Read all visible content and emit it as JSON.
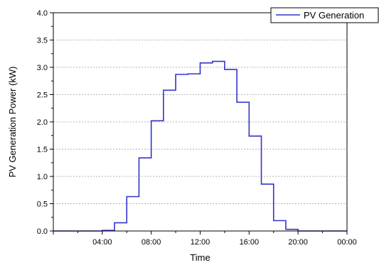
{
  "chart_data": {
    "type": "line",
    "step": true,
    "xlabel": "Time",
    "ylabel": "PV Generation Power (kW)",
    "xlim": [
      0,
      24
    ],
    "ylim": [
      0,
      4.0
    ],
    "x_ticks": [
      {
        "value": 4,
        "label": "04:00"
      },
      {
        "value": 8,
        "label": "08:00"
      },
      {
        "value": 12,
        "label": "12:00"
      },
      {
        "value": 16,
        "label": "16:00"
      },
      {
        "value": 20,
        "label": "20:00"
      },
      {
        "value": 24,
        "label": "00:00"
      }
    ],
    "y_ticks": [
      "0.0",
      "0.5",
      "1.0",
      "1.5",
      "2.0",
      "2.5",
      "3.0",
      "3.5",
      "4.0"
    ],
    "grid": "horizontal-dotted",
    "legend": "top-right",
    "series": [
      {
        "name": "PV Generation",
        "color": "#3333cc",
        "x": [
          0,
          1,
          2,
          3,
          4,
          5,
          6,
          7,
          8,
          9,
          10,
          11,
          12,
          13,
          14,
          15,
          16,
          17,
          18,
          19,
          20,
          21,
          22,
          23
        ],
        "values": [
          0,
          0,
          0,
          0,
          0.01,
          0.15,
          0.63,
          1.34,
          2.02,
          2.58,
          2.87,
          2.88,
          3.08,
          3.11,
          2.96,
          2.36,
          1.74,
          0.86,
          0.19,
          0.03,
          0,
          0,
          0,
          0
        ]
      }
    ]
  }
}
